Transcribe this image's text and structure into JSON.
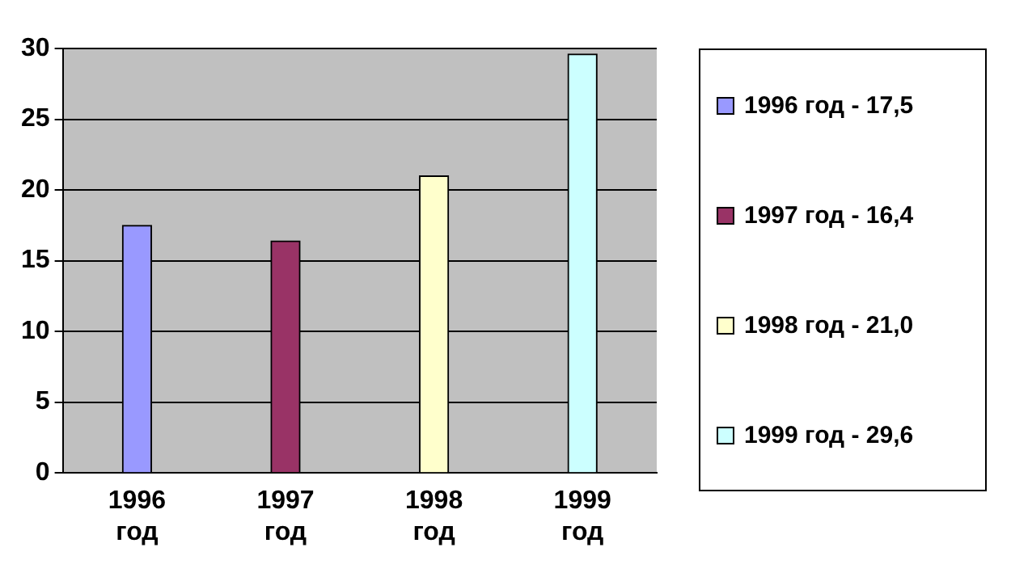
{
  "chart_data": {
    "type": "bar",
    "categories": [
      "1996 год",
      "1997 год",
      "1998 год",
      "1999 год"
    ],
    "series": [
      {
        "name": "1996 год - 17,5",
        "color": "#9999ff",
        "values": [
          17.5,
          null,
          null,
          null
        ]
      },
      {
        "name": "1997 год - 16,4",
        "color": "#993366",
        "values": [
          null,
          16.4,
          null,
          null
        ]
      },
      {
        "name": "1998 год - 21,0",
        "color": "#ffffcc",
        "values": [
          null,
          null,
          21.0,
          null
        ]
      },
      {
        "name": "1999 год - 29,6",
        "color": "#ccffff",
        "values": [
          null,
          null,
          null,
          29.6
        ]
      }
    ],
    "ylim": [
      0,
      30
    ],
    "yticks": [
      0,
      5,
      10,
      15,
      20,
      25,
      30
    ],
    "grid": "y",
    "legend": "right"
  }
}
